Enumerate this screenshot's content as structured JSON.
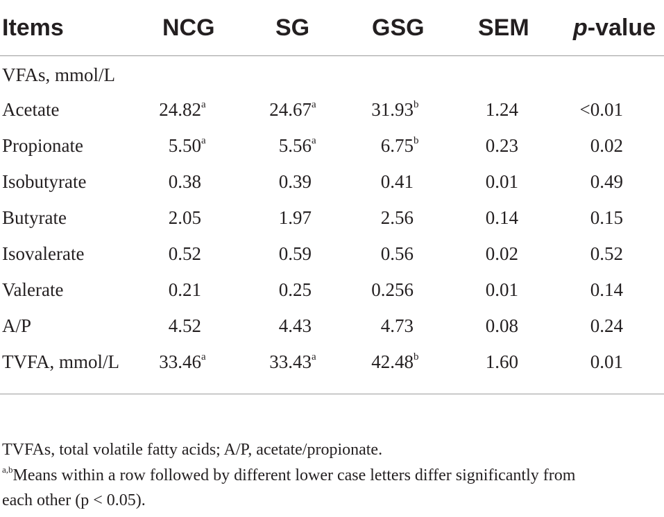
{
  "table": {
    "headers": {
      "items": "Items",
      "ncg": "NCG",
      "sg": "SG",
      "gsg": "GSG",
      "sem": "SEM",
      "p_italic": "p",
      "p_rest": "-value"
    },
    "section_label": "VFAs, mmol/L",
    "rows": [
      {
        "item": "Acetate",
        "ncg": "24.82",
        "ncg_sup": "a",
        "sg": "24.67",
        "sg_sup": "a",
        "gsg": "31.93",
        "gsg_sup": "b",
        "sem": "1.24",
        "p": "<0.01"
      },
      {
        "item": "Propionate",
        "ncg": "5.50",
        "ncg_sup": "a",
        "sg": "5.56",
        "sg_sup": "a",
        "gsg": "6.75",
        "gsg_sup": "b",
        "sem": "0.23",
        "p": "0.02"
      },
      {
        "item": "Isobutyrate",
        "ncg": "0.38",
        "ncg_sup": "",
        "sg": "0.39",
        "sg_sup": "",
        "gsg": "0.41",
        "gsg_sup": "",
        "sem": "0.01",
        "p": "0.49"
      },
      {
        "item": "Butyrate",
        "ncg": "2.05",
        "ncg_sup": "",
        "sg": "1.97",
        "sg_sup": "",
        "gsg": "2.56",
        "gsg_sup": "",
        "sem": "0.14",
        "p": "0.15"
      },
      {
        "item": "Isovalerate",
        "ncg": "0.52",
        "ncg_sup": "",
        "sg": "0.59",
        "sg_sup": "",
        "gsg": "0.56",
        "gsg_sup": "",
        "sem": "0.02",
        "p": "0.52"
      },
      {
        "item": "Valerate",
        "ncg": "0.21",
        "ncg_sup": "",
        "sg": "0.25",
        "sg_sup": "",
        "gsg": "0.256",
        "gsg_sup": "",
        "sem": "0.01",
        "p": "0.14"
      },
      {
        "item": "A/P",
        "ncg": "4.52",
        "ncg_sup": "",
        "sg": "4.43",
        "sg_sup": "",
        "gsg": "4.73",
        "gsg_sup": "",
        "sem": "0.08",
        "p": "0.24"
      },
      {
        "item": "TVFA, mmol/L",
        "ncg": "33.46",
        "ncg_sup": "a",
        "sg": "33.43",
        "sg_sup": "a",
        "gsg": "42.48",
        "gsg_sup": "b",
        "sem": "1.60",
        "p": "0.01"
      }
    ]
  },
  "footnotes": {
    "abbreviations": "TVFAs, total volatile fatty acids; A/P, acetate/propionate.",
    "sig_sup": "a,b",
    "sig_line1": "Means within a row followed by different lower case letters differ significantly from",
    "sig_line2": "each other (p < 0.05)."
  }
}
